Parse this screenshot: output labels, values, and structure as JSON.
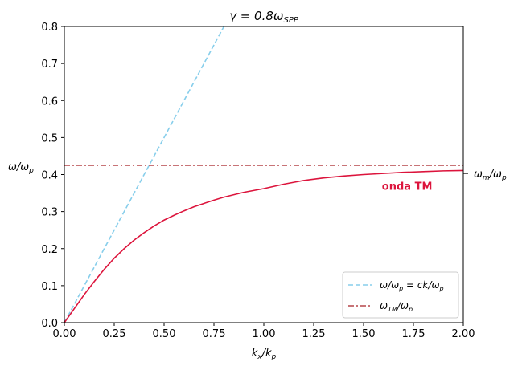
{
  "chart_data": {
    "type": "line",
    "title": "γ = 0.8ω_SPP",
    "title_parts": {
      "main": "γ = 0.8ω",
      "sub": "SPP"
    },
    "xlabel_parts": {
      "k": "k",
      "k_sub": "x",
      "slash": "/k",
      "p_sub": "p"
    },
    "ylabel_parts": {
      "w": "ω/ω",
      "sub": "p"
    },
    "xlim": [
      0,
      2.0
    ],
    "ylim": [
      0,
      0.8
    ],
    "xticks": [
      0.0,
      0.25,
      0.5,
      0.75,
      1.0,
      1.25,
      1.5,
      1.75,
      2.0
    ],
    "xtick_labels": [
      "0.00",
      "0.25",
      "0.50",
      "0.75",
      "1.00",
      "1.25",
      "1.50",
      "1.75",
      "2.00"
    ],
    "yticks": [
      0.0,
      0.1,
      0.2,
      0.3,
      0.4,
      0.5,
      0.6,
      0.7,
      0.8
    ],
    "ytick_labels": [
      "0.0",
      "0.1",
      "0.2",
      "0.3",
      "0.4",
      "0.5",
      "0.6",
      "0.7",
      "0.8"
    ],
    "right_tick": {
      "value": 0.403,
      "label_main": "ω",
      "label_sub1": "m",
      "label_mid": "/ω",
      "label_sub2": "p"
    },
    "grid": false,
    "legend_position": "lower-right",
    "series": [
      {
        "id": "light",
        "name": "ω/ω_p = ck/ω_p",
        "legend_parts": {
          "a": "ω/ω",
          "a_sub": "p",
          "b": " = ck/ω",
          "b_sub": "p"
        },
        "style": "dashed",
        "color": "#87ceeb",
        "x": [
          0.0,
          0.81
        ],
        "y": [
          0.0,
          0.81
        ]
      },
      {
        "id": "tm-line",
        "name": "ω_TM/ω_p",
        "legend_parts": {
          "a": "ω",
          "a_sub": "TM",
          "b": "/ω",
          "b_sub": "p"
        },
        "style": "dashdot",
        "color": "#b5474a",
        "x": [
          0.0,
          2.0
        ],
        "y": [
          0.425,
          0.425
        ]
      },
      {
        "id": "tm-wave",
        "name": "onda TM",
        "style": "solid",
        "color": "#dc143c",
        "x": [
          0.0,
          0.05,
          0.1,
          0.15,
          0.2,
          0.25,
          0.3,
          0.35,
          0.4,
          0.45,
          0.5,
          0.55,
          0.6,
          0.65,
          0.7,
          0.75,
          0.8,
          0.9,
          1.0,
          1.1,
          1.2,
          1.3,
          1.4,
          1.5,
          1.6,
          1.7,
          1.8,
          1.9,
          2.0
        ],
        "y": [
          0.0,
          0.038,
          0.076,
          0.111,
          0.144,
          0.174,
          0.2,
          0.223,
          0.243,
          0.261,
          0.277,
          0.29,
          0.302,
          0.313,
          0.322,
          0.331,
          0.339,
          0.352,
          0.362,
          0.374,
          0.384,
          0.391,
          0.396,
          0.4,
          0.403,
          0.406,
          0.408,
          0.41,
          0.411
        ]
      }
    ],
    "annotations": [
      {
        "id": "onda-tm",
        "text": "onda TM",
        "x": 1.6,
        "y": 0.37,
        "color": "#dc143c"
      }
    ]
  }
}
